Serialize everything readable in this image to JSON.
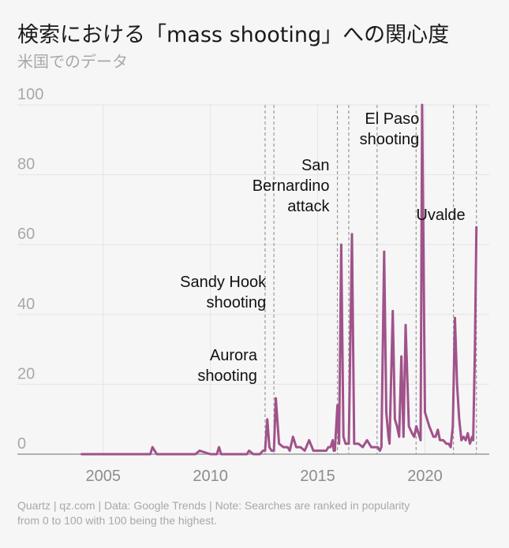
{
  "title": "検索における「mass shooting」への関心度",
  "subtitle": "米国でのデータ",
  "footer": {
    "line1": "Quartz | qz.com | Data: Google Trends | Note: Searches are ranked in popularity",
    "line2": "from 0 to 100 with 100 being the highest."
  },
  "chart_data": {
    "type": "line",
    "title": "検索における「mass shooting」への関心度",
    "subtitle": "米国でのデータ",
    "xlabel": "",
    "ylabel": "",
    "ylim": [
      0,
      100
    ],
    "xlim": [
      2001,
      2023
    ],
    "grid": true,
    "line_color": "#a0528a",
    "y_ticks": [
      0,
      20,
      40,
      60,
      80,
      100
    ],
    "x_ticks": [
      2005,
      2010,
      2015,
      2020
    ],
    "series": [
      {
        "x": [
          2004.0,
          2004.5,
          2005.0,
          2005.5,
          2006.0,
          2006.5,
          2007.0,
          2007.2,
          2007.3,
          2007.5,
          2008.0,
          2008.5,
          2009.0,
          2009.3,
          2009.5,
          2010.0,
          2010.3,
          2010.4,
          2010.5,
          2011.0,
          2011.5,
          2011.7,
          2011.8,
          2012.0,
          2012.1,
          2012.3,
          2012.45,
          2012.55,
          2012.65,
          2012.75,
          2012.85,
          2012.96,
          2013.05,
          2013.2,
          2013.4,
          2013.6,
          2013.7,
          2013.85,
          2014.0,
          2014.2,
          2014.4,
          2014.6,
          2014.8,
          2015.0,
          2015.2,
          2015.4,
          2015.5,
          2015.6,
          2015.7,
          2015.75,
          2015.8,
          2015.92,
          2016.0,
          2016.1,
          2016.2,
          2016.3,
          2016.45,
          2016.6,
          2016.7,
          2016.9,
          2017.1,
          2017.3,
          2017.5,
          2017.7,
          2017.8,
          2017.9,
          2017.97,
          2018.1,
          2018.2,
          2018.3,
          2018.35,
          2018.5,
          2018.6,
          2018.7,
          2018.8,
          2018.9,
          2019.0,
          2019.1,
          2019.25,
          2019.4,
          2019.5,
          2019.6,
          2019.7,
          2019.8,
          2019.87,
          2020.0,
          2020.2,
          2020.4,
          2020.5,
          2020.6,
          2020.7,
          2020.85,
          2021.0,
          2021.1,
          2021.2,
          2021.3,
          2021.4,
          2021.5,
          2021.6,
          2021.7,
          2021.8,
          2021.9,
          2022.0,
          2022.1,
          2022.2,
          2022.25,
          2022.33,
          2022.4
        ],
        "values": [
          0,
          0,
          0,
          0,
          0,
          0,
          0,
          0,
          2,
          0,
          0,
          0,
          0,
          0,
          1,
          0,
          0,
          2,
          0,
          0,
          0,
          0,
          1,
          0,
          0,
          0,
          1,
          1,
          10,
          2,
          1,
          1,
          16,
          3,
          2,
          2,
          1,
          5,
          2,
          2,
          1,
          4,
          1,
          1,
          1,
          1,
          2,
          2,
          4,
          1,
          1,
          14,
          3,
          60,
          5,
          3,
          3,
          63,
          3,
          3,
          2,
          4,
          2,
          2,
          2,
          1,
          2,
          58,
          12,
          5,
          3,
          41,
          10,
          8,
          5,
          28,
          5,
          37,
          8,
          6,
          5,
          8,
          6,
          4,
          100,
          12,
          8,
          5,
          5,
          7,
          4,
          4,
          3,
          3,
          2,
          8,
          39,
          20,
          10,
          4,
          5,
          4,
          6,
          3,
          5,
          4,
          30,
          65
        ]
      }
    ],
    "annotations": [
      {
        "label_lines": [
          "Aurora",
          "shooting"
        ],
        "x": 2012.55
      },
      {
        "label_lines": [
          "Sandy Hook",
          "shooting"
        ],
        "x": 2012.96
      },
      {
        "label_lines": [
          "San",
          "Bernardino",
          "attack"
        ],
        "x": 2015.92
      },
      {
        "label_lines": [
          "El Paso",
          "shooting"
        ],
        "x": 2019.59
      },
      {
        "label_lines": [
          "Uvalde"
        ],
        "x": 2022.4
      }
    ],
    "extra_vlines": [
      2016.45,
      2017.77,
      2021.33
    ]
  }
}
